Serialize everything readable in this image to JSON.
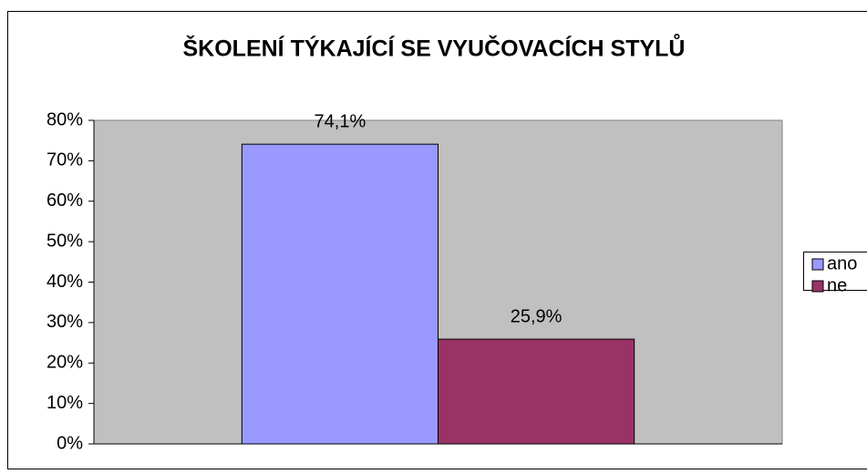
{
  "chart_data": {
    "type": "bar",
    "title": "ŠKOLENÍ TÝKAJÍCÍ SE VYUČOVACÍCH STYLŮ",
    "categories": [
      null
    ],
    "series": [
      {
        "name": "ano",
        "color": "#9999ff",
        "values": [
          74.1
        ],
        "value_labels": [
          "74,1%"
        ]
      },
      {
        "name": "ne",
        "color": "#993366",
        "values": [
          25.9
        ],
        "value_labels": [
          "25,9%"
        ]
      }
    ],
    "ylim": [
      0,
      80
    ],
    "yticks": [
      {
        "value": 0,
        "label": "0%"
      },
      {
        "value": 10,
        "label": "10%"
      },
      {
        "value": 20,
        "label": "20%"
      },
      {
        "value": 30,
        "label": "30%"
      },
      {
        "value": 40,
        "label": "40%"
      },
      {
        "value": 50,
        "label": "50%"
      },
      {
        "value": 60,
        "label": "60%"
      },
      {
        "value": 70,
        "label": "70%"
      },
      {
        "value": 80,
        "label": "80%"
      }
    ],
    "grid": false,
    "legend": "right",
    "plot_background": "#c0c0c0"
  }
}
